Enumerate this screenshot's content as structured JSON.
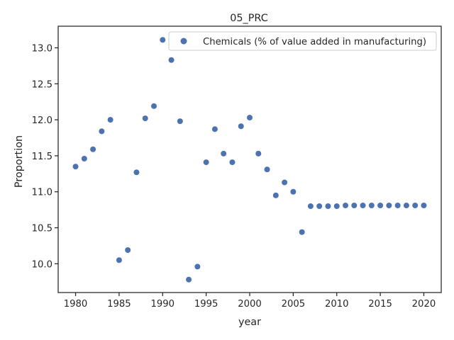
{
  "chart_data": {
    "type": "scatter",
    "title": "05_PRC",
    "xlabel": "year",
    "ylabel": "Proportion",
    "xlim": [
      1978,
      2022
    ],
    "ylim": [
      9.6,
      13.3
    ],
    "xticks": [
      1980,
      1985,
      1990,
      1995,
      2000,
      2005,
      2010,
      2015,
      2020
    ],
    "yticks": [
      10.0,
      10.5,
      11.0,
      11.5,
      12.0,
      12.5,
      13.0
    ],
    "ytick_labels": [
      "10.0",
      "10.5",
      "11.0",
      "11.5",
      "12.0",
      "12.5",
      "13.0"
    ],
    "grid": false,
    "legend_position": "top-right",
    "series": [
      {
        "name": "Chemicals (% of value added in manufacturing)",
        "color": "#4c72b0",
        "x": [
          1980,
          1981,
          1982,
          1983,
          1984,
          1985,
          1986,
          1987,
          1988,
          1989,
          1990,
          1991,
          1992,
          1993,
          1994,
          1995,
          1996,
          1997,
          1998,
          1999,
          2000,
          2001,
          2002,
          2003,
          2004,
          2005,
          2006,
          2007,
          2008,
          2009,
          2010,
          2011,
          2012,
          2013,
          2014,
          2015,
          2016,
          2017,
          2018,
          2019,
          2020
        ],
        "y": [
          11.35,
          11.46,
          11.59,
          11.84,
          12.0,
          10.05,
          10.19,
          11.27,
          12.02,
          12.19,
          13.11,
          12.83,
          11.98,
          9.78,
          9.96,
          11.41,
          11.87,
          11.53,
          11.41,
          11.91,
          12.03,
          11.53,
          11.31,
          10.95,
          11.13,
          11.0,
          10.44,
          10.8,
          10.8,
          10.8,
          10.8,
          10.81,
          10.81,
          10.81,
          10.81,
          10.81,
          10.81,
          10.81,
          10.81,
          10.81,
          10.81
        ]
      }
    ]
  }
}
